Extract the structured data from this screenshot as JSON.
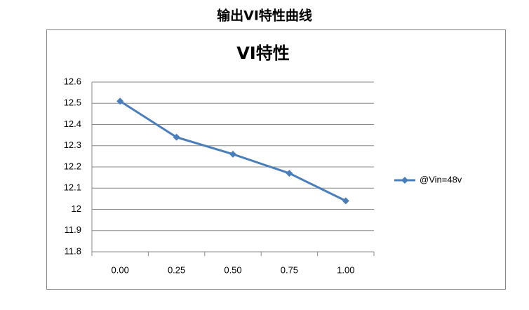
{
  "page_title": "输出VI特性曲线",
  "chart_data": {
    "type": "line",
    "title": "VI特性",
    "categories": [
      "0.00",
      "0.25",
      "0.50",
      "0.75",
      "1.00"
    ],
    "series": [
      {
        "name": "@Vin=48v",
        "color": "#4a7ebb",
        "values": [
          12.51,
          12.34,
          12.26,
          12.17,
          12.04
        ]
      }
    ],
    "ylim": [
      11.8,
      12.6
    ],
    "yticks": [
      11.8,
      11.9,
      12,
      12.1,
      12.2,
      12.3,
      12.4,
      12.5,
      12.6
    ],
    "grid": true,
    "legend": "right"
  }
}
